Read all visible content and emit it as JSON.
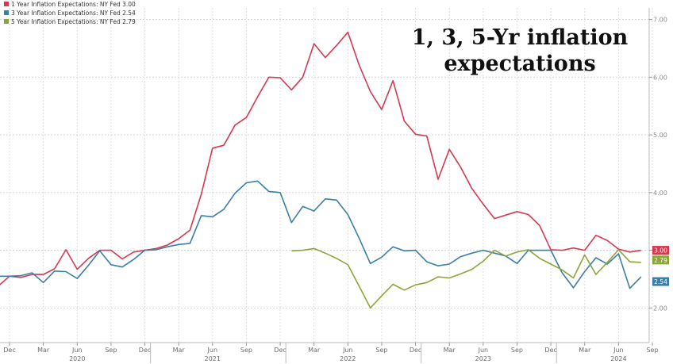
{
  "chart_data": {
    "type": "line",
    "title": "1, 3, 5-Yr inflation expectations",
    "title_lines": [
      "1, 3, 5-Yr inflation",
      "expectations"
    ],
    "xlabel": "",
    "ylabel": "",
    "ylim": [
      1.4,
      7.2
    ],
    "yticks": [
      "2.00",
      "3.00",
      "4.00",
      "5.00",
      "6.00",
      "7.00"
    ],
    "x_month_labels": [
      "Dec",
      "Mar",
      "Jun",
      "Sep",
      "Dec",
      "Mar",
      "Jun",
      "Sep",
      "Dec",
      "Mar",
      "Jun",
      "Sep",
      "Dec",
      "Mar",
      "Jun",
      "Sep",
      "Dec",
      "Mar",
      "Jun",
      "Sep"
    ],
    "x_year_labels": [
      "2020",
      "2021",
      "2022",
      "2023",
      "2024"
    ],
    "grid": true,
    "legend_position": "top-left",
    "series": [
      {
        "name": "1 Year Inflation Expectations: NY Fed 3.00",
        "end_label": "3.00",
        "color": "#d6394f",
        "x": [
          "2019-11",
          "2019-12",
          "2020-01",
          "2020-02",
          "2020-03",
          "2020-04",
          "2020-05",
          "2020-06",
          "2020-07",
          "2020-08",
          "2020-09",
          "2020-10",
          "2020-11",
          "2020-12",
          "2021-01",
          "2021-02",
          "2021-03",
          "2021-04",
          "2021-05",
          "2021-06",
          "2021-07",
          "2021-08",
          "2021-09",
          "2021-10",
          "2021-11",
          "2021-12",
          "2022-01",
          "2022-02",
          "2022-03",
          "2022-04",
          "2022-05",
          "2022-06",
          "2022-07",
          "2022-08",
          "2022-09",
          "2022-10",
          "2022-11",
          "2022-12",
          "2023-01",
          "2023-02",
          "2023-03",
          "2023-04",
          "2023-05",
          "2023-06",
          "2023-07",
          "2023-08",
          "2023-09",
          "2023-10",
          "2023-11",
          "2023-12",
          "2024-01",
          "2024-02",
          "2024-03",
          "2024-04",
          "2024-05",
          "2024-06",
          "2024-07",
          "2024-08"
        ],
        "values": [
          2.38,
          2.55,
          2.53,
          2.58,
          2.58,
          2.68,
          3.01,
          2.67,
          2.86,
          3.0,
          3.0,
          2.85,
          2.97,
          3.0,
          3.03,
          3.09,
          3.2,
          3.35,
          3.97,
          4.77,
          4.82,
          5.17,
          5.3,
          5.66,
          6.0,
          5.99,
          5.78,
          6.0,
          6.58,
          6.34,
          6.55,
          6.78,
          6.21,
          5.75,
          5.44,
          5.94,
          5.24,
          5.01,
          4.98,
          4.23,
          4.75,
          4.44,
          4.07,
          3.8,
          3.55,
          3.61,
          3.67,
          3.62,
          3.43,
          3.01,
          3.0,
          3.04,
          3.0,
          3.26,
          3.17,
          3.02,
          2.97,
          3.0
        ]
      },
      {
        "name": "3 Year Inflation Expectations: NY Fed 2.54",
        "end_label": "2.54",
        "color": "#3a7fa8",
        "x": [
          "2019-11",
          "2019-12",
          "2020-01",
          "2020-02",
          "2020-03",
          "2020-04",
          "2020-05",
          "2020-06",
          "2020-07",
          "2020-08",
          "2020-09",
          "2020-10",
          "2020-11",
          "2020-12",
          "2021-01",
          "2021-02",
          "2021-03",
          "2021-04",
          "2021-05",
          "2021-06",
          "2021-07",
          "2021-08",
          "2021-09",
          "2021-10",
          "2021-11",
          "2021-12",
          "2022-01",
          "2022-02",
          "2022-03",
          "2022-04",
          "2022-05",
          "2022-06",
          "2022-07",
          "2022-08",
          "2022-09",
          "2022-10",
          "2022-11",
          "2022-12",
          "2023-01",
          "2023-02",
          "2023-03",
          "2023-04",
          "2023-05",
          "2023-06",
          "2023-07",
          "2023-08",
          "2023-09",
          "2023-10",
          "2023-11",
          "2023-12",
          "2024-01",
          "2024-02",
          "2024-03",
          "2024-04",
          "2024-05",
          "2024-06",
          "2024-07",
          "2024-08"
        ],
        "values": [
          2.55,
          2.55,
          2.56,
          2.61,
          2.44,
          2.64,
          2.63,
          2.51,
          2.74,
          2.99,
          2.75,
          2.71,
          2.84,
          3.0,
          3.01,
          3.06,
          3.1,
          3.12,
          3.6,
          3.58,
          3.71,
          3.99,
          4.17,
          4.2,
          4.02,
          4.0,
          3.48,
          3.76,
          3.68,
          3.89,
          3.87,
          3.62,
          3.21,
          2.77,
          2.88,
          3.06,
          2.99,
          3.0,
          2.8,
          2.73,
          2.76,
          2.89,
          2.95,
          3.0,
          2.95,
          2.9,
          2.77,
          3.0,
          3.0,
          3.0,
          2.61,
          2.35,
          2.63,
          2.87,
          2.76,
          2.94,
          2.34,
          2.54
        ]
      },
      {
        "name": "5 Year Inflation Expectations: NY Fed 2.79",
        "end_label": "2.79",
        "color": "#8aa53a",
        "x": [
          "2022-01",
          "2022-02",
          "2022-03",
          "2022-04",
          "2022-05",
          "2022-06",
          "2022-07",
          "2022-08",
          "2022-09",
          "2022-10",
          "2022-11",
          "2022-12",
          "2023-01",
          "2023-02",
          "2023-03",
          "2023-04",
          "2023-05",
          "2023-06",
          "2023-07",
          "2023-08",
          "2023-09",
          "2023-10",
          "2023-11",
          "2023-12",
          "2024-01",
          "2024-02",
          "2024-03",
          "2024-04",
          "2024-05",
          "2024-06",
          "2024-07",
          "2024-08"
        ],
        "values": [
          2.99,
          3.0,
          3.03,
          2.95,
          2.86,
          2.75,
          2.38,
          2.0,
          2.21,
          2.41,
          2.31,
          2.4,
          2.44,
          2.54,
          2.52,
          2.59,
          2.67,
          2.81,
          3.0,
          2.9,
          2.97,
          3.01,
          2.86,
          2.76,
          2.66,
          2.52,
          2.92,
          2.58,
          2.79,
          3.01,
          2.8,
          2.79
        ]
      }
    ]
  }
}
